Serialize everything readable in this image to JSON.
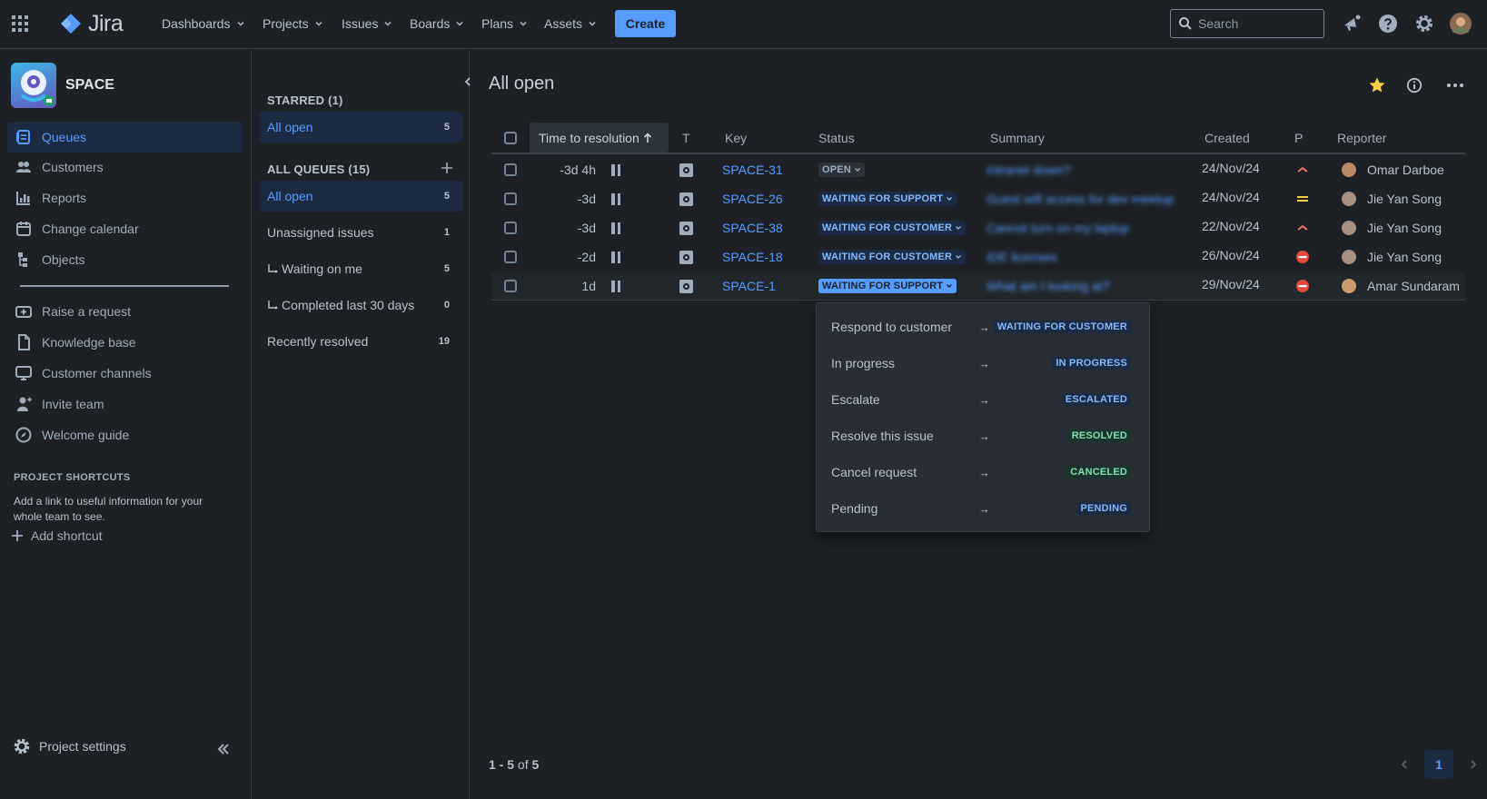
{
  "app": {
    "name": "Jira"
  },
  "nav": {
    "items": [
      {
        "label": "Dashboards"
      },
      {
        "label": "Projects"
      },
      {
        "label": "Issues"
      },
      {
        "label": "Boards"
      },
      {
        "label": "Plans"
      },
      {
        "label": "Assets"
      }
    ],
    "create_label": "Create",
    "search_placeholder": "Search"
  },
  "sidebar": {
    "project_name": "SPACE",
    "items": [
      {
        "label": "Queues",
        "icon": "queues-icon",
        "active": true
      },
      {
        "label": "Customers",
        "icon": "customers-icon"
      },
      {
        "label": "Reports",
        "icon": "reports-icon"
      },
      {
        "label": "Change calendar",
        "icon": "calendar-icon"
      },
      {
        "label": "Objects",
        "icon": "objects-icon"
      }
    ],
    "secondary_items": [
      {
        "label": "Raise a request",
        "icon": "raise-request-icon"
      },
      {
        "label": "Knowledge base",
        "icon": "knowledge-base-icon"
      },
      {
        "label": "Customer channels",
        "icon": "channels-icon"
      },
      {
        "label": "Invite team",
        "icon": "invite-icon"
      },
      {
        "label": "Welcome guide",
        "icon": "compass-icon"
      }
    ],
    "shortcuts_heading": "PROJECT SHORTCUTS",
    "shortcuts_desc": "Add a link to useful information for your whole team to see.",
    "add_shortcut": "Add shortcut",
    "settings": "Project settings"
  },
  "queues": {
    "starred_heading": "STARRED (1)",
    "starred": [
      {
        "label": "All open",
        "count": "5"
      }
    ],
    "all_heading": "ALL QUEUES (15)",
    "all": [
      {
        "label": "All open",
        "count": "5",
        "active": true
      },
      {
        "label": "Unassigned issues",
        "count": "1"
      },
      {
        "label": "Waiting on me",
        "count": "5",
        "sub": true
      },
      {
        "label": "Completed last 30 days",
        "count": "0",
        "sub": true
      },
      {
        "label": "Recently resolved",
        "count": "19"
      }
    ]
  },
  "main": {
    "title": "All open",
    "columns": {
      "ttr": "Time to resolution",
      "type": "T",
      "key": "Key",
      "status": "Status",
      "summary": "Summary",
      "created": "Created",
      "priority": "P",
      "reporter": "Reporter"
    },
    "rows": [
      {
        "ttr": "-3d 4h",
        "key": "SPACE-31",
        "status": "OPEN",
        "summary": "Intranet down?",
        "created": "24/Nov/24",
        "priority": "high",
        "reporter": "Omar Darboe"
      },
      {
        "ttr": "-3d",
        "key": "SPACE-26",
        "status": "WAITING FOR SUPPORT",
        "summary": "Guest wifi access for dev meetup",
        "created": "24/Nov/24",
        "priority": "medium",
        "reporter": "Jie Yan Song"
      },
      {
        "ttr": "-3d",
        "key": "SPACE-38",
        "status": "WAITING FOR CUSTOMER",
        "summary": "Cannot turn on my laptop",
        "created": "22/Nov/24",
        "priority": "high",
        "reporter": "Jie Yan Song"
      },
      {
        "ttr": "-2d",
        "key": "SPACE-18",
        "status": "WAITING FOR CUSTOMER",
        "summary": "IDE licenses",
        "created": "26/Nov/24",
        "priority": "blocker",
        "reporter": "Jie Yan Song"
      },
      {
        "ttr": "1d",
        "key": "SPACE-1",
        "status": "WAITING FOR SUPPORT",
        "summary": "What am I looking at?",
        "created": "29/Nov/24",
        "priority": "blocker",
        "reporter": "Amar Sundaram"
      }
    ],
    "transitions": [
      {
        "label": "Respond to customer",
        "arrow": "→",
        "target": "WAITING FOR CUSTOMER",
        "tone": "blue"
      },
      {
        "label": "In progress",
        "arrow": "→",
        "target": "IN PROGRESS",
        "tone": "blue"
      },
      {
        "label": "Escalate",
        "arrow": "→",
        "target": "ESCALATED",
        "tone": "blue"
      },
      {
        "label": "Resolve this issue",
        "arrow": "→",
        "target": "RESOLVED",
        "tone": "green"
      },
      {
        "label": "Cancel request",
        "arrow": "→",
        "target": "CANCELED",
        "tone": "green"
      },
      {
        "label": "Pending",
        "arrow": "→",
        "target": "PENDING",
        "tone": "blue"
      }
    ],
    "pagination": {
      "range": "1 - 5",
      "of": "of",
      "total": "5",
      "current_page": "1"
    }
  },
  "colors": {
    "accent": "#579dff",
    "background": "#1d2125",
    "priority_high": "#f87462",
    "priority_medium": "#f5cd47",
    "priority_blocker": "#e2483d"
  }
}
